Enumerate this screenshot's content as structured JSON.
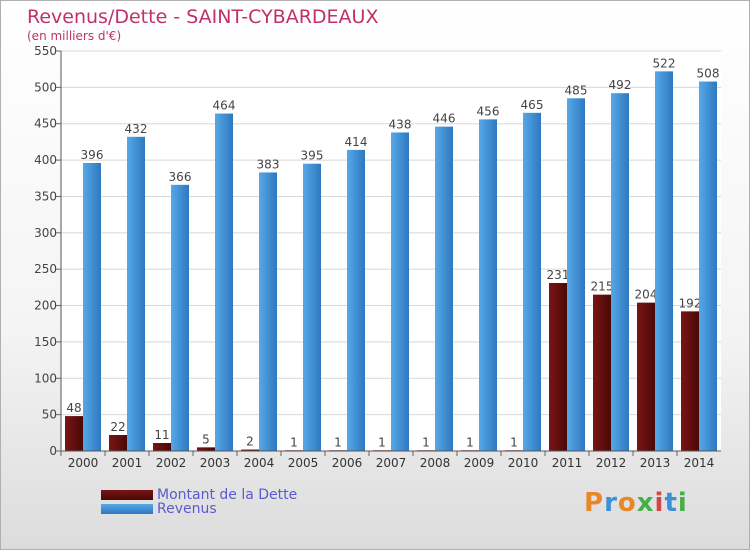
{
  "title": "Revenus/Dette - SAINT-CYBARDEAUX",
  "subtitle": "(en milliers d'€)",
  "logo_text": "Proxiti",
  "colors": {
    "dette": "#7a1515",
    "dette_dark": "#4a0808",
    "revenus": "#55a8e8",
    "revenus_dark": "#2f78c0",
    "title": "#c0306a",
    "legend_text": "#5a5ad0"
  },
  "chart_data": {
    "type": "bar",
    "title": "Revenus/Dette - SAINT-CYBARDEAUX",
    "subtitle": "(en milliers d'€)",
    "categories": [
      "2000",
      "2001",
      "2002",
      "2003",
      "2004",
      "2005",
      "2006",
      "2007",
      "2008",
      "2009",
      "2010",
      "2011",
      "2012",
      "2013",
      "2014"
    ],
    "series": [
      {
        "name": "Montant de la Dette",
        "values": [
          48,
          22,
          11,
          5,
          2,
          1,
          1,
          1,
          1,
          1,
          1,
          231,
          215,
          204,
          192
        ]
      },
      {
        "name": "Revenus",
        "values": [
          396,
          432,
          366,
          464,
          383,
          395,
          414,
          438,
          446,
          456,
          465,
          485,
          492,
          522,
          508
        ]
      }
    ],
    "ylim": [
      0,
      550
    ],
    "yticks": [
      0,
      50,
      100,
      150,
      200,
      250,
      300,
      350,
      400,
      450,
      500,
      550
    ],
    "grid": true,
    "legend": "bottom-left"
  }
}
